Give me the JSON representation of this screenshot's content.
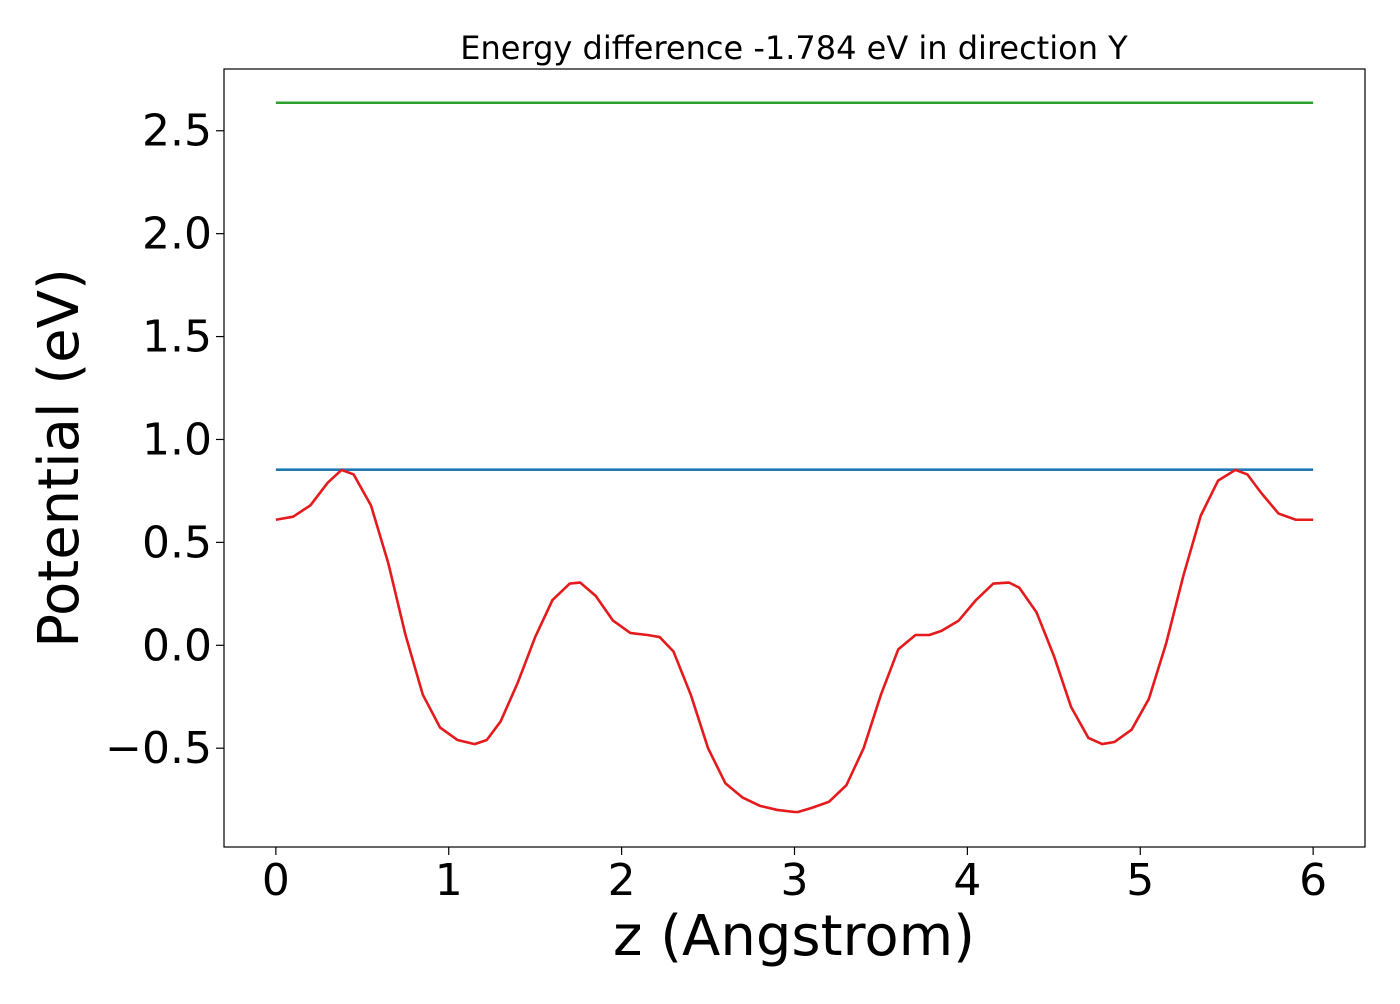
{
  "chart_data": {
    "type": "line",
    "title": "Energy difference -1.784 eV in direction Y",
    "xlabel": "z (Angstrom)",
    "ylabel": "Potential (eV)",
    "xlim": [
      -0.3,
      6.3
    ],
    "ylim": [
      -0.98,
      2.8
    ],
    "xticks": [
      0,
      1,
      2,
      3,
      4,
      5,
      6
    ],
    "xtick_labels": [
      "0",
      "1",
      "2",
      "3",
      "4",
      "5",
      "6"
    ],
    "yticks": [
      -0.5,
      0.0,
      0.5,
      1.0,
      1.5,
      2.0,
      2.5
    ],
    "ytick_labels": [
      "−0.5",
      "0.0",
      "0.5",
      "1.0",
      "1.5",
      "2.0",
      "2.5"
    ],
    "grid": false,
    "legend": "none",
    "series": [
      {
        "color": "#2ca02c",
        "x": [
          0,
          6
        ],
        "y": [
          2.636,
          2.636
        ]
      },
      {
        "color": "#1f77b4",
        "x": [
          0,
          6
        ],
        "y": [
          0.853,
          0.853
        ]
      },
      {
        "color": "#e41a1c",
        "x": [
          0,
          0.1,
          0.2,
          0.3,
          0.38,
          0.45,
          0.55,
          0.65,
          0.75,
          0.85,
          0.95,
          1.05,
          1.15,
          1.22,
          1.3,
          1.4,
          1.5,
          1.6,
          1.7,
          1.76,
          1.85,
          1.95,
          2.05,
          2.15,
          2.22,
          2.3,
          2.4,
          2.5,
          2.6,
          2.7,
          2.8,
          2.9,
          3.0,
          3.02,
          3.1,
          3.2,
          3.3,
          3.4,
          3.5,
          3.6,
          3.7,
          3.78,
          3.85,
          3.95,
          4.05,
          4.15,
          4.24,
          4.3,
          4.4,
          4.5,
          4.6,
          4.7,
          4.78,
          4.85,
          4.95,
          5.05,
          5.15,
          5.25,
          5.35,
          5.45,
          5.55,
          5.62,
          5.7,
          5.8,
          5.9,
          6.0
        ],
        "y": [
          0.61,
          0.625,
          0.68,
          0.79,
          0.852,
          0.83,
          0.68,
          0.4,
          0.05,
          -0.24,
          -0.4,
          -0.46,
          -0.48,
          -0.46,
          -0.37,
          -0.18,
          0.04,
          0.22,
          0.3,
          0.305,
          0.24,
          0.12,
          0.06,
          0.05,
          0.04,
          -0.03,
          -0.24,
          -0.5,
          -0.67,
          -0.74,
          -0.78,
          -0.8,
          -0.81,
          -0.81,
          -0.79,
          -0.76,
          -0.68,
          -0.5,
          -0.24,
          -0.02,
          0.05,
          0.05,
          0.07,
          0.12,
          0.22,
          0.3,
          0.305,
          0.28,
          0.16,
          -0.05,
          -0.3,
          -0.45,
          -0.48,
          -0.47,
          -0.41,
          -0.26,
          0.01,
          0.34,
          0.63,
          0.8,
          0.852,
          0.83,
          0.74,
          0.64,
          0.61,
          0.61
        ]
      }
    ]
  }
}
